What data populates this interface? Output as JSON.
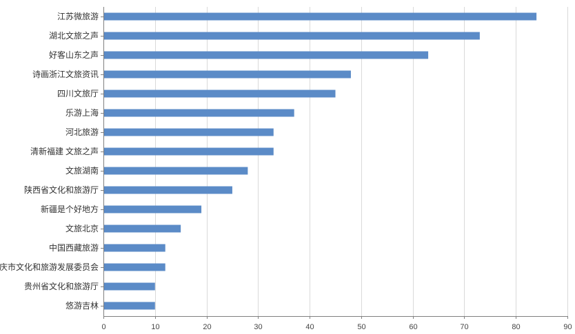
{
  "chart_data": {
    "type": "bar",
    "orientation": "horizontal",
    "title": "",
    "xlabel": "",
    "ylabel": "",
    "categories": [
      "江苏微旅游",
      "湖北文旅之声",
      "好客山东之声",
      "诗画浙江文旅资讯",
      "四川文旅厅",
      "乐游上海",
      "河北旅游",
      "清新福建 文旅之声",
      "文旅湖南",
      "陕西省文化和旅游厅",
      "新疆是个好地方",
      "文旅北京",
      "中国西藏旅游",
      "重庆市文化和旅游发展委员会",
      "贵州省文化和旅游厅",
      "悠游吉林"
    ],
    "values": [
      84,
      73,
      63,
      48,
      45,
      37,
      33,
      33,
      28,
      25,
      19,
      15,
      12,
      12,
      10,
      10
    ],
    "xlim": [
      0,
      90
    ],
    "xticks": [
      "0",
      "10",
      "20",
      "30",
      "40",
      "50",
      "60",
      "70",
      "80",
      "90"
    ],
    "grid": true,
    "legend": "none",
    "colors": {
      "bar": "#5b8bc7",
      "grid": "#d9d9d9",
      "axis": "#7f7f7f"
    }
  }
}
